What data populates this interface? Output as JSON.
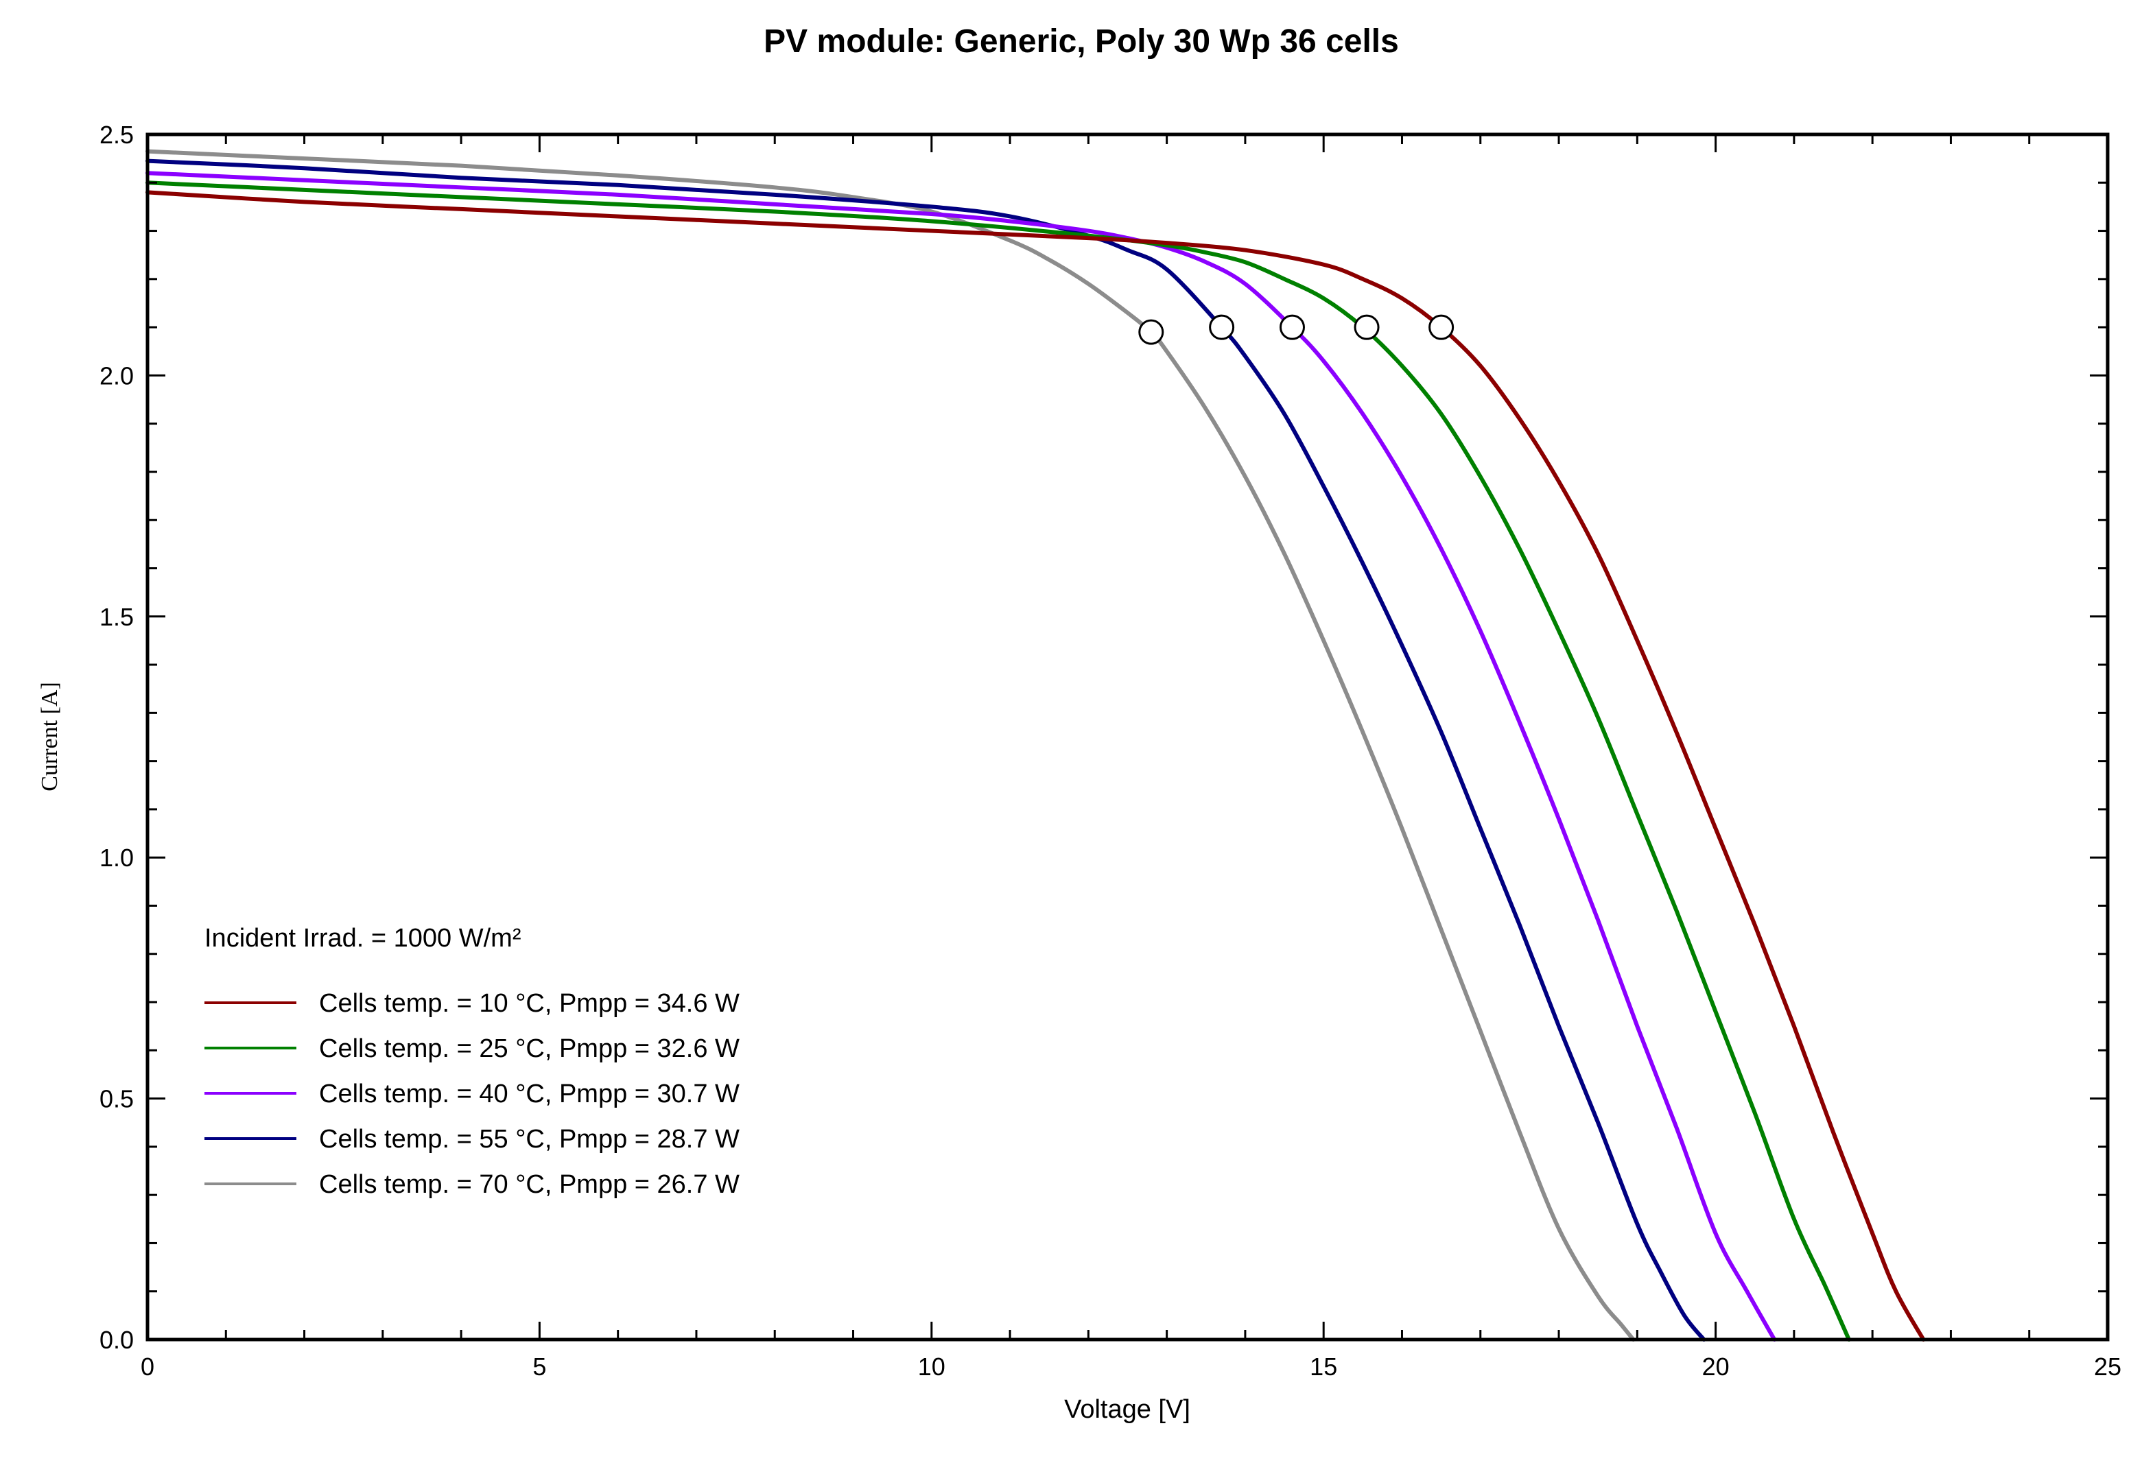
{
  "chart_data": {
    "type": "line",
    "title": "PV module:  Generic,  Poly 30 Wp 36 cells",
    "xlabel": "Voltage [V]",
    "ylabel": "Current [A]",
    "xlim": [
      0,
      25
    ],
    "ylim": [
      0,
      2.5
    ],
    "x_ticks": [
      0,
      5,
      10,
      15,
      20,
      25
    ],
    "x_tick_labels": [
      "0",
      "5",
      "10",
      "15",
      "20",
      "25"
    ],
    "y_ticks": [
      0,
      0.5,
      1.0,
      1.5,
      2.0,
      2.5
    ],
    "y_tick_labels": [
      "0.0",
      "0.5",
      "1.0",
      "1.5",
      "2.0",
      "2.5"
    ],
    "grid": false,
    "legend_position": "bottom-left",
    "legend_header": "Incident Irrad. = 1000 W/m²",
    "series": [
      {
        "name": "Cells temp. = 10 °C,  Pmpp = 34.6 W",
        "color": "#8b0000",
        "x": [
          0,
          2,
          4,
          6,
          8,
          10,
          12,
          13,
          14,
          15,
          15.5,
          16,
          16.5,
          17,
          17.5,
          18,
          18.5,
          19,
          19.5,
          20,
          20.5,
          21,
          21.5,
          22,
          22.3,
          22.65
        ],
        "y": [
          2.38,
          2.36,
          2.345,
          2.33,
          2.315,
          2.3,
          2.285,
          2.275,
          2.26,
          2.23,
          2.2,
          2.16,
          2.1,
          2.02,
          1.91,
          1.78,
          1.63,
          1.45,
          1.26,
          1.06,
          0.86,
          0.65,
          0.43,
          0.22,
          0.1,
          0.0
        ],
        "mpp": {
          "x": 16.5,
          "y": 2.1
        }
      },
      {
        "name": "Cells temp. = 25 °C,  Pmpp = 32.6 W",
        "color": "#008000",
        "x": [
          0,
          2,
          4,
          6,
          8,
          10,
          12,
          13,
          13.5,
          14,
          14.5,
          15,
          15.5,
          16,
          16.5,
          17,
          17.5,
          18,
          18.5,
          19,
          19.5,
          20,
          20.5,
          21,
          21.4,
          21.7
        ],
        "y": [
          2.4,
          2.385,
          2.37,
          2.355,
          2.34,
          2.32,
          2.29,
          2.27,
          2.255,
          2.235,
          2.2,
          2.16,
          2.1,
          2.02,
          1.92,
          1.79,
          1.64,
          1.47,
          1.29,
          1.09,
          0.89,
          0.68,
          0.47,
          0.25,
          0.11,
          0.0
        ],
        "mpp": {
          "x": 15.55,
          "y": 2.1
        }
      },
      {
        "name": "Cells temp. = 40 °C,  Pmpp = 30.7 W",
        "color": "#8b00ff",
        "x": [
          0,
          2,
          4,
          6,
          8,
          10,
          11,
          12,
          12.5,
          13,
          13.5,
          14,
          14.6,
          15,
          15.5,
          16,
          16.5,
          17,
          17.5,
          18,
          18.5,
          19,
          19.5,
          20,
          20.4,
          20.75
        ],
        "y": [
          2.42,
          2.405,
          2.39,
          2.375,
          2.355,
          2.335,
          2.32,
          2.3,
          2.285,
          2.265,
          2.235,
          2.19,
          2.1,
          2.03,
          1.92,
          1.79,
          1.64,
          1.47,
          1.28,
          1.08,
          0.87,
          0.65,
          0.44,
          0.22,
          0.1,
          0.0
        ],
        "mpp": {
          "x": 14.6,
          "y": 2.1
        }
      },
      {
        "name": "Cells temp. = 55 °C,  Pmpp = 28.7 W",
        "color": "#000080",
        "x": [
          0,
          2,
          4,
          6,
          8,
          10,
          11,
          12,
          12.5,
          13,
          13.7,
          14,
          14.5,
          15,
          15.5,
          16,
          16.5,
          17,
          17.5,
          18,
          18.5,
          19,
          19.3,
          19.6,
          19.85
        ],
        "y": [
          2.445,
          2.43,
          2.41,
          2.395,
          2.375,
          2.35,
          2.33,
          2.29,
          2.26,
          2.22,
          2.1,
          2.04,
          1.92,
          1.77,
          1.61,
          1.44,
          1.26,
          1.06,
          0.86,
          0.65,
          0.45,
          0.24,
          0.14,
          0.05,
          0.0
        ],
        "mpp": {
          "x": 13.7,
          "y": 2.1
        }
      },
      {
        "name": "Cells temp. = 70 °C,  Pmpp = 26.7 W",
        "color": "#8c8c8c",
        "x": [
          0,
          2,
          4,
          6,
          8,
          9,
          10,
          11,
          11.5,
          12,
          12.5,
          12.8,
          13,
          13.5,
          14,
          14.5,
          15,
          15.5,
          16,
          16.5,
          17,
          17.5,
          18,
          18.5,
          18.8,
          18.95
        ],
        "y": [
          2.465,
          2.45,
          2.435,
          2.415,
          2.39,
          2.37,
          2.34,
          2.28,
          2.24,
          2.19,
          2.13,
          2.09,
          2.05,
          1.93,
          1.79,
          1.63,
          1.45,
          1.26,
          1.06,
          0.85,
          0.64,
          0.43,
          0.23,
          0.09,
          0.03,
          0.0
        ],
        "mpp": {
          "x": 12.8,
          "y": 2.09
        }
      }
    ]
  }
}
